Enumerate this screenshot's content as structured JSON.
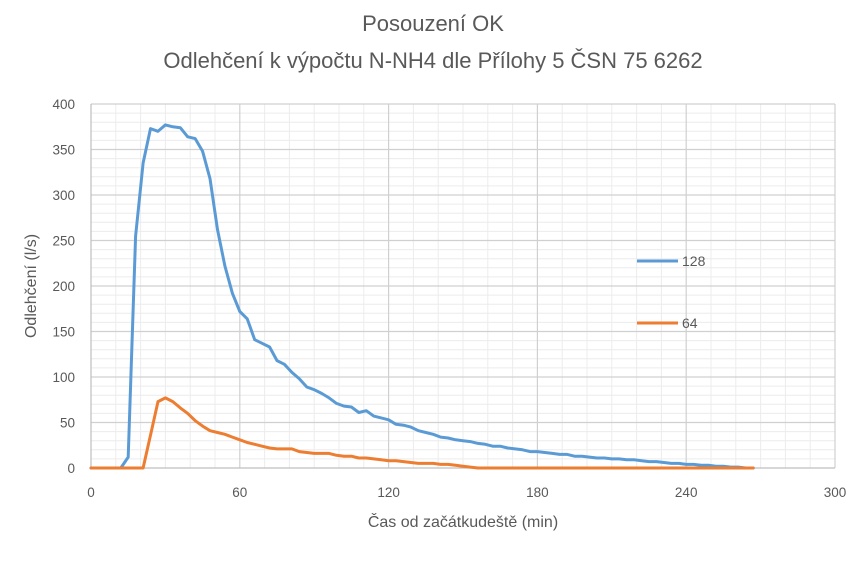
{
  "chart_data": {
    "type": "line",
    "title_line1": "Posouzení OK",
    "title_line2": "Odlehčení k výpočtu N-NH4 dle  Přílohy 5 ČSN 75 6262",
    "xlabel": "Čas od začátkudeště (min)",
    "ylabel": "Odlehčení (l/s)",
    "xlim": [
      0,
      300
    ],
    "ylim": [
      0,
      400
    ],
    "x_ticks": [
      0,
      60,
      120,
      180,
      240,
      300
    ],
    "y_ticks": [
      0,
      50,
      100,
      150,
      200,
      250,
      300,
      350,
      400
    ],
    "grid": true,
    "legend_position": "right",
    "series": [
      {
        "name": "128",
        "color": "#5b9bd5",
        "x": [
          0,
          6,
          12,
          15,
          18,
          21,
          24,
          27,
          30,
          33,
          36,
          39,
          42,
          45,
          48,
          51,
          54,
          57,
          60,
          63,
          66,
          69,
          72,
          75,
          78,
          81,
          84,
          87,
          90,
          93,
          96,
          99,
          102,
          105,
          108,
          111,
          114,
          117,
          120,
          123,
          126,
          129,
          132,
          135,
          138,
          141,
          144,
          147,
          150,
          153,
          156,
          159,
          162,
          165,
          168,
          171,
          174,
          177,
          180,
          183,
          186,
          189,
          192,
          195,
          198,
          201,
          204,
          207,
          210,
          213,
          216,
          219,
          222,
          225,
          228,
          231,
          234,
          237,
          240,
          243,
          246,
          249,
          252,
          255,
          258,
          261,
          264,
          267
        ],
        "y": [
          0,
          0,
          0,
          12,
          255,
          335,
          373,
          370,
          377,
          375,
          374,
          364,
          362,
          348,
          318,
          262,
          222,
          192,
          172,
          164,
          141,
          137,
          133,
          118,
          114,
          105,
          98,
          89,
          86,
          82,
          77,
          71,
          68,
          67,
          61,
          63,
          57,
          55,
          53,
          48,
          47,
          45,
          41,
          39,
          37,
          34,
          33,
          31,
          30,
          29,
          27,
          26,
          24,
          24,
          22,
          21,
          20,
          18,
          18,
          17,
          16,
          15,
          15,
          13,
          13,
          12,
          11,
          11,
          10,
          10,
          9,
          9,
          8,
          7,
          7,
          6,
          5,
          5,
          4,
          4,
          3,
          3,
          2,
          2,
          1,
          1,
          0,
          0
        ]
      },
      {
        "name": "64",
        "color": "#ed7d31",
        "x": [
          0,
          6,
          12,
          18,
          21,
          24,
          27,
          30,
          33,
          36,
          39,
          42,
          45,
          48,
          51,
          54,
          57,
          60,
          63,
          66,
          69,
          72,
          75,
          78,
          81,
          84,
          87,
          90,
          93,
          96,
          99,
          102,
          105,
          108,
          111,
          114,
          117,
          120,
          123,
          126,
          129,
          132,
          135,
          138,
          141,
          144,
          147,
          150,
          153,
          156,
          162,
          168,
          180,
          200,
          220,
          240,
          260,
          267
        ],
        "y": [
          0,
          0,
          0,
          0,
          0,
          36,
          73,
          77,
          73,
          66,
          60,
          52,
          46,
          41,
          39,
          37,
          34,
          31,
          28,
          26,
          24,
          22,
          21,
          21,
          21,
          18,
          17,
          16,
          16,
          16,
          14,
          13,
          13,
          11,
          11,
          10,
          9,
          8,
          8,
          7,
          6,
          5,
          5,
          5,
          4,
          4,
          3,
          2,
          1,
          0,
          0,
          0,
          0,
          0,
          0,
          0,
          0,
          0
        ]
      }
    ]
  }
}
